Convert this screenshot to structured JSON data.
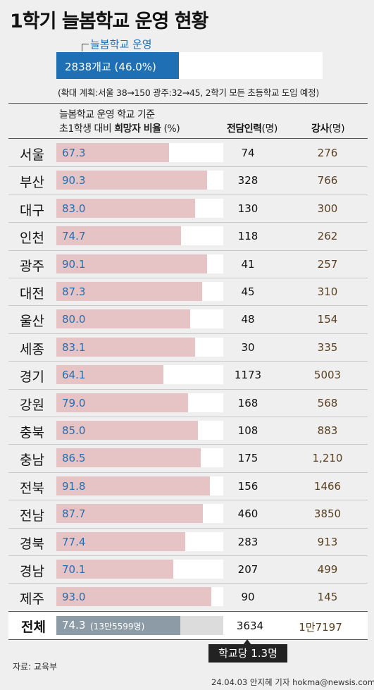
{
  "title": "1학기 늘봄학교 운영 현황",
  "operation": {
    "label": "늘봄학교 운영",
    "value_text": "2838개교 (46.0%)",
    "percent": 46.0,
    "note": "(확대 계획:서울 38→150 광주:32→45, 2학기 모든 초등학교 도입 예정)"
  },
  "headers": {
    "rate_line1": "늘봄학교 운영 학교 기준",
    "rate_line2_pre": "초1학생 대비 ",
    "rate_line2_bold": "희망자 비율",
    "rate_line2_post": " (%)",
    "staff_bold": "전담인력",
    "staff_unit": "(명)",
    "inst_bold": "강사",
    "inst_unit": "(명)"
  },
  "chart_data": {
    "type": "bar",
    "orientation": "horizontal",
    "categories": [
      "서울",
      "부산",
      "대구",
      "인천",
      "광주",
      "대전",
      "울산",
      "세종",
      "경기",
      "강원",
      "충북",
      "충남",
      "전북",
      "전남",
      "경북",
      "경남",
      "제주"
    ],
    "rate_percent": [
      67.3,
      90.3,
      83.0,
      74.7,
      90.1,
      87.3,
      80.0,
      83.1,
      64.1,
      79.0,
      85.0,
      86.5,
      91.8,
      87.7,
      77.4,
      70.1,
      93.0
    ],
    "rate_labels": [
      "67.3",
      "90.3",
      "83.0",
      "74.7",
      "90.1",
      "87.3",
      "80.0",
      "83.1",
      "64.1",
      "79.0",
      "85.0",
      "86.5",
      "91.8",
      "87.7",
      "77.4",
      "70.1",
      "93.0"
    ],
    "staff": [
      "74",
      "328",
      "130",
      "118",
      "41",
      "45",
      "48",
      "30",
      "1173",
      "168",
      "108",
      "175",
      "156",
      "460",
      "283",
      "207",
      "90"
    ],
    "instructors": [
      "276",
      "766",
      "300",
      "262",
      "257",
      "310",
      "154",
      "335",
      "5003",
      "568",
      "883",
      "1,210",
      "1466",
      "3850",
      "913",
      "499",
      "145"
    ],
    "xlim": [
      0,
      100
    ],
    "total": {
      "label": "전체",
      "rate": 74.3,
      "rate_label": "74.3",
      "students": "(13만5599명)",
      "staff": "3634",
      "instructors": "1만7197"
    }
  },
  "per_school": "학교당 1.3명",
  "source": "자료: 교육부",
  "credit": "24.04.03 안지혜 기자 hokma@newsis.com",
  "colors": {
    "accent_blue": "#1f6fb5",
    "bar_pink": "#e6c4c6",
    "total_bar": "#8d9ba6",
    "instructor_text": "#5a4020"
  }
}
